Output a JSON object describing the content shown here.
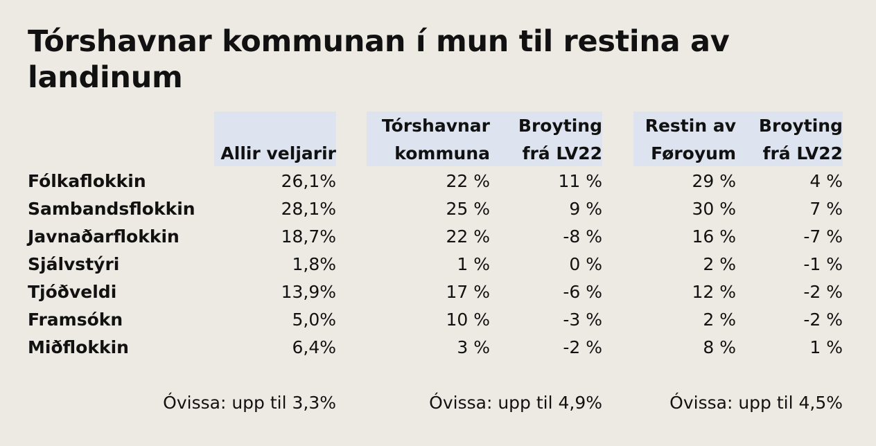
{
  "title": "Tórshavnar kommunan í mun til restina av landinum",
  "colors": {
    "background": "#edeae3",
    "header_bg": "#dde3ef",
    "text": "#111111"
  },
  "chart_data": {
    "type": "table",
    "title": "Tórshavnar kommunan í mun til restina av landinum",
    "columns": [
      {
        "line1": "",
        "line2": "Allir veljarir"
      },
      {
        "line1": "Tórshavnar",
        "line2": "kommuna"
      },
      {
        "line1": "Broyting",
        "line2": "frá LV22"
      },
      {
        "line1": "Restin av",
        "line2": "Føroyum"
      },
      {
        "line1": "Broyting",
        "line2": "frá LV22"
      }
    ],
    "rows": [
      {
        "party": "Fólkaflokkin",
        "values": [
          "26,1%",
          "22 %",
          "11 %",
          "29 %",
          "4 %"
        ]
      },
      {
        "party": "Sambandsflokkin",
        "values": [
          "28,1%",
          "25 %",
          "9 %",
          "30 %",
          "7 %"
        ]
      },
      {
        "party": "Javnaðarflokkin",
        "values": [
          "18,7%",
          "22 %",
          "-8 %",
          "16 %",
          "-7 %"
        ]
      },
      {
        "party": "Sjálvstýri",
        "values": [
          "1,8%",
          "1 %",
          "0 %",
          "2 %",
          "-1 %"
        ]
      },
      {
        "party": "Tjóðveldi",
        "values": [
          "13,9%",
          "17 %",
          "-6 %",
          "12 %",
          "-2 %"
        ]
      },
      {
        "party": "Framsókn",
        "values": [
          "5,0%",
          "10 %",
          "-3 %",
          "2 %",
          "-2 %"
        ]
      },
      {
        "party": "Miðflokkin",
        "values": [
          "6,4%",
          "3 %",
          "-2 %",
          "8 %",
          "1 %"
        ]
      }
    ],
    "uncertainty": [
      "Óvissa: upp til 3,3%",
      "Óvissa: upp til 4,9%",
      "Óvissa: upp til 4,5%"
    ]
  }
}
